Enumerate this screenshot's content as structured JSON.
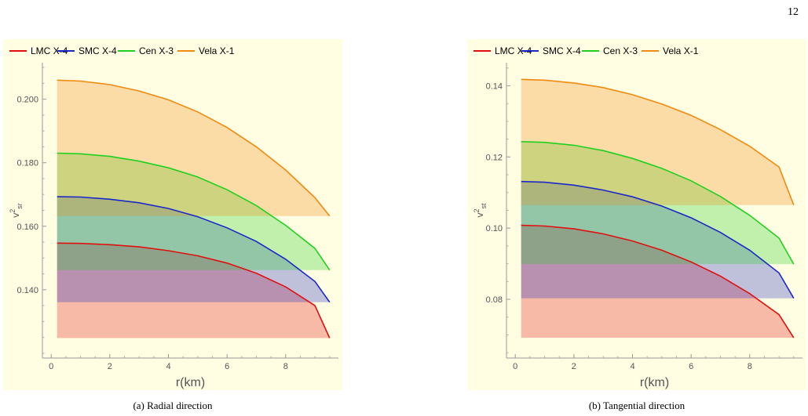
{
  "page_number": "12",
  "captions": [
    "(a) Radial direction",
    "(b) Tangential direction"
  ],
  "chart_data": [
    {
      "type": "area",
      "xlabel": "r(km)",
      "ylabel": "v",
      "ylabel_sup": "2",
      "ylabel_sub": "sr",
      "xlim": [
        -0.3,
        9.8
      ],
      "ylim": [
        0.1185,
        0.2115
      ],
      "xticks": [
        0,
        2,
        4,
        6,
        8
      ],
      "yticks": [
        0.14,
        0.16,
        0.18,
        0.2
      ],
      "ytick_labels": [
        "0.140",
        "0.160",
        "0.180",
        "0.200"
      ],
      "legend_position": "top",
      "series": [
        {
          "name": "LMC X-4",
          "color": "#e01010",
          "x": [
            0.2,
            1,
            2,
            3,
            4,
            5,
            6,
            7,
            8,
            9,
            9.5
          ],
          "values": [
            0.1547,
            0.1546,
            0.1542,
            0.1535,
            0.1523,
            0.1507,
            0.1484,
            0.1452,
            0.1409,
            0.135,
            0.1248
          ]
        },
        {
          "name": "SMC X-4",
          "color": "#1a28c8",
          "x": [
            0.2,
            1,
            2,
            3,
            4,
            5,
            6,
            7,
            8,
            9,
            9.5
          ],
          "values": [
            0.1693,
            0.1692,
            0.1685,
            0.1674,
            0.1656,
            0.163,
            0.1595,
            0.1552,
            0.1496,
            0.1426,
            0.1361
          ]
        },
        {
          "name": "Cen X-3",
          "color": "#20d020",
          "x": [
            0.2,
            1,
            2,
            3,
            4,
            5,
            6,
            7,
            8,
            9,
            9.5
          ],
          "values": [
            0.183,
            0.1828,
            0.182,
            0.1805,
            0.1784,
            0.1755,
            0.1715,
            0.1665,
            0.1603,
            0.153,
            0.1462
          ]
        },
        {
          "name": "Vela X-1",
          "color": "#f08a10",
          "x": [
            0.2,
            1,
            2,
            3,
            4,
            5,
            6,
            7,
            8,
            9,
            9.5
          ],
          "values": [
            0.206,
            0.2057,
            0.2046,
            0.2026,
            0.1998,
            0.196,
            0.1911,
            0.185,
            0.1777,
            0.169,
            0.1632
          ]
        }
      ]
    },
    {
      "type": "area",
      "xlabel": "r(km)",
      "ylabel": "v",
      "ylabel_sup": "2",
      "ylabel_sub": "st",
      "xlim": [
        -0.3,
        9.8
      ],
      "ylim": [
        0.0635,
        0.1465
      ],
      "xticks": [
        0,
        2,
        4,
        6,
        8
      ],
      "yticks": [
        0.08,
        0.1,
        0.12,
        0.14
      ],
      "ytick_labels": [
        "0.08",
        "0.10",
        "0.12",
        "0.14"
      ],
      "legend_position": "top",
      "series": [
        {
          "name": "LMC X-4",
          "color": "#e01010",
          "x": [
            0.2,
            1,
            2,
            3,
            4,
            5,
            6,
            7,
            8,
            9,
            9.5
          ],
          "values": [
            0.1008,
            0.1006,
            0.0998,
            0.0984,
            0.0964,
            0.0938,
            0.0905,
            0.0865,
            0.0816,
            0.0757,
            0.0692
          ]
        },
        {
          "name": "SMC X-4",
          "color": "#1a28c8",
          "x": [
            0.2,
            1,
            2,
            3,
            4,
            5,
            6,
            7,
            8,
            9,
            9.5
          ],
          "values": [
            0.1131,
            0.1129,
            0.1121,
            0.1107,
            0.1088,
            0.1062,
            0.1029,
            0.0988,
            0.0938,
            0.0874,
            0.0803
          ]
        },
        {
          "name": "Cen X-3",
          "color": "#20d020",
          "x": [
            0.2,
            1,
            2,
            3,
            4,
            5,
            6,
            7,
            8,
            9,
            9.5
          ],
          "values": [
            0.1243,
            0.1241,
            0.1233,
            0.1218,
            0.1196,
            0.1168,
            0.1133,
            0.1089,
            0.1036,
            0.0972,
            0.0899
          ]
        },
        {
          "name": "Vela X-1",
          "color": "#f08a10",
          "x": [
            0.2,
            1,
            2,
            3,
            4,
            5,
            6,
            7,
            8,
            9,
            9.5
          ],
          "values": [
            0.1418,
            0.1416,
            0.1408,
            0.1395,
            0.1375,
            0.1349,
            0.1317,
            0.1277,
            0.123,
            0.1172,
            0.1065
          ]
        }
      ]
    }
  ]
}
